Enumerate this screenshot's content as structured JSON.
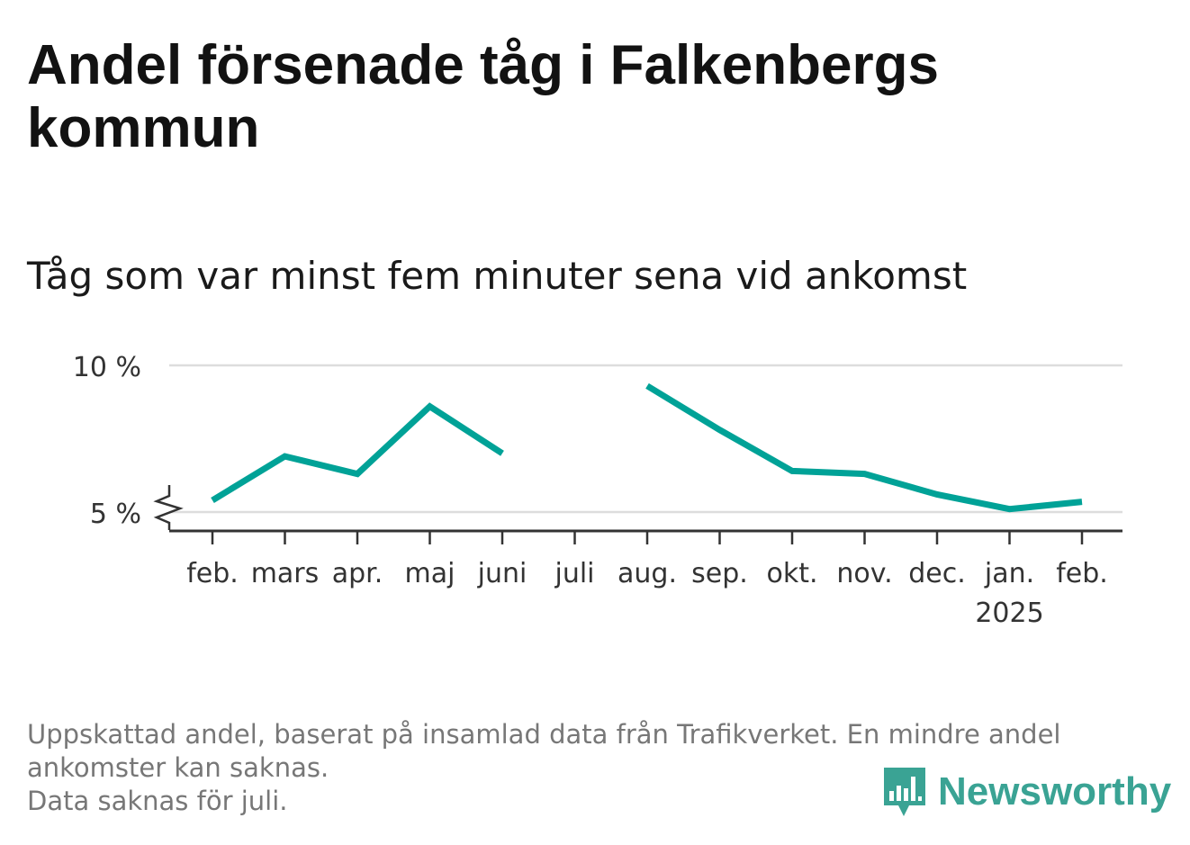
{
  "title": "Andel försenade tåg i Falkenbergs kommun",
  "subtitle": "Tåg som var minst fem minuter sena vid ankomst",
  "chart_data": {
    "type": "line",
    "categories": [
      "feb.",
      "mars",
      "apr.",
      "maj",
      "juni",
      "juli",
      "aug.",
      "sep.",
      "okt.",
      "nov.",
      "dec.",
      "jan.",
      "feb."
    ],
    "year_label": "2025",
    "year_label_under": "jan.",
    "series": [
      {
        "values": [
          5.4,
          6.9,
          6.3,
          8.6,
          7.0,
          null,
          9.3,
          7.8,
          6.4,
          6.3,
          5.6,
          5.1,
          5.35
        ],
        "color": "#00a297"
      }
    ],
    "ylim": [
      5,
      10
    ],
    "y_ticks": [
      {
        "value": 5,
        "label": "5 %"
      },
      {
        "value": 10,
        "label": "10 %"
      }
    ],
    "y_axis_break": true,
    "grid": true,
    "legend": "none"
  },
  "caption": {
    "line1": "Uppskattad andel, baserat på insamlad data från Trafikverket. En mindre andel",
    "line2": "ankomster kan saknas.",
    "line3": "Data saknas för juli."
  },
  "brand": {
    "name": "Newsworthy",
    "color": "#3aa394",
    "icon": "newsworthy-logo-icon"
  }
}
